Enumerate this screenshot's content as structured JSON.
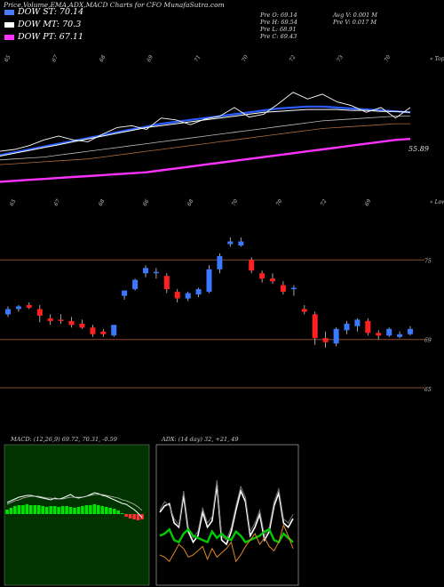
{
  "page": {
    "title": "Price,Volume,EMA,ADX,MACD Charts for CFO MunafaSutra.com"
  },
  "legend": [
    {
      "label": "DOW ST: 70.14",
      "color": "#4a7bff"
    },
    {
      "label": "DOW MT: 70.3",
      "color": "#ffffff"
    },
    {
      "label": "DOW PT: 67.11",
      "color": "#ff33ff"
    }
  ],
  "ohlc": {
    "open": "Pre  O: 69.14",
    "high": "Pre  H: 69.54",
    "low": "Pre  L: 68.91",
    "close": "Pre  C: 69.43",
    "avg_volume": "Avg V: 0.001 M",
    "prev_volume": "Pre  V: 0.017 M"
  },
  "colors": {
    "up": "#3a78ff",
    "down": "#ff2020",
    "ema_short": "#2a5cff",
    "ema_mid": "#ffffff",
    "ema_long": "#ff33ff",
    "macd_panel": "#003300",
    "macd_hist_up": "#00e600",
    "macd_hist_down": "#ff3333",
    "adx_pos": "#00cc00",
    "adx_neg": "#e08a2a",
    "level_line": "#8a4a2a"
  },
  "chart_data": [
    {
      "type": "line",
      "title": "Price with EMA",
      "top_tick_labels": [
        "65",
        "67",
        "68",
        "69",
        "71",
        "70",
        "72",
        "73",
        "70"
      ],
      "bottom_tick_labels": [
        "65",
        "67",
        "68",
        "66",
        "68",
        "70",
        "70",
        "72",
        "69"
      ],
      "corner_labels": [
        "« Tops",
        "« Lows"
      ],
      "last_value_label": "55.89",
      "series": [
        {
          "values": [
            64.4,
            64.7,
            65.0,
            65.3,
            65.6,
            65.9,
            66.2,
            66.5,
            66.8,
            67.1,
            67.4,
            67.7,
            67.9,
            68.1,
            68.3,
            68.5,
            68.7,
            68.9,
            69.1,
            69.3,
            69.4,
            69.5,
            69.5,
            69.4,
            69.3,
            69.2,
            69.1,
            69.0,
            68.9
          ]
        },
        {
          "values": [
            64.3,
            64.6,
            64.9,
            65.2,
            65.5,
            65.8,
            66.1,
            66.4,
            66.7,
            67.0,
            67.3,
            67.5,
            67.7,
            67.9,
            68.1,
            68.3,
            68.5,
            68.7,
            68.9,
            69.0,
            69.1,
            69.2,
            69.2,
            69.2,
            69.1,
            69.1,
            69.0,
            69.0,
            68.9
          ]
        },
        {
          "values": [
            63.9,
            64.0,
            64.1,
            64.2,
            64.4,
            64.6,
            64.8,
            65.0,
            65.2,
            65.4,
            65.6,
            65.8,
            66.0,
            66.2,
            66.4,
            66.6,
            66.8,
            67.0,
            67.2,
            67.4,
            67.6,
            67.8,
            68.0,
            68.1,
            68.2,
            68.3,
            68.4,
            68.5,
            68.5
          ]
        },
        {
          "values": [
            63.4,
            63.5,
            63.6,
            63.7,
            63.8,
            63.9,
            64.0,
            64.2,
            64.4,
            64.6,
            64.8,
            65.0,
            65.2,
            65.4,
            65.6,
            65.8,
            66.0,
            66.2,
            66.4,
            66.6,
            66.8,
            67.0,
            67.2,
            67.3,
            67.4,
            67.5,
            67.6,
            67.7,
            67.7
          ]
        },
        {
          "values": [
            61.6,
            61.7,
            61.8,
            61.9,
            62.0,
            62.1,
            62.2,
            62.3,
            62.4,
            62.5,
            62.6,
            62.8,
            63.0,
            63.2,
            63.4,
            63.6,
            63.8,
            64.0,
            64.2,
            64.4,
            64.6,
            64.8,
            65.0,
            65.2,
            65.4,
            65.6,
            65.8,
            66.0,
            66.1
          ]
        },
        {
          "values": [
            64.8,
            65.0,
            65.4,
            66.0,
            66.4,
            66.0,
            65.8,
            66.6,
            67.3,
            67.5,
            67.1,
            68.3,
            68.1,
            67.6,
            68.2,
            68.5,
            69.4,
            68.4,
            68.7,
            69.8,
            71.0,
            70.3,
            70.8,
            70.0,
            69.6,
            68.9,
            69.4,
            68.3,
            69.4
          ]
        }
      ]
    },
    {
      "type": "bar",
      "title": "Candlesticks",
      "y_tick_labels": [
        "75",
        "69",
        "65"
      ],
      "ylim": [
        64.2,
        76.7
      ],
      "candles": [
        {
          "o": 70.9,
          "h": 71.5,
          "l": 70.7,
          "c": 71.3
        },
        {
          "o": 71.3,
          "h": 71.6,
          "l": 71.1,
          "c": 71.5
        },
        {
          "o": 71.6,
          "h": 71.8,
          "l": 71.3,
          "c": 71.4
        },
        {
          "o": 71.3,
          "h": 71.6,
          "l": 70.3,
          "c": 70.8
        },
        {
          "o": 70.6,
          "h": 70.9,
          "l": 70.1,
          "c": 70.4
        },
        {
          "o": 70.5,
          "h": 70.9,
          "l": 70.2,
          "c": 70.4
        },
        {
          "o": 70.4,
          "h": 70.7,
          "l": 69.9,
          "c": 70.1
        },
        {
          "o": 70.2,
          "h": 70.5,
          "l": 69.8,
          "c": 69.9
        },
        {
          "o": 69.9,
          "h": 70.1,
          "l": 69.2,
          "c": 69.4
        },
        {
          "o": 69.6,
          "h": 69.8,
          "l": 69.2,
          "c": 69.4
        },
        {
          "o": 69.3,
          "h": 70.1,
          "l": 69.2,
          "c": 70.1
        },
        {
          "o": 72.3,
          "h": 72.7,
          "l": 72.0,
          "c": 72.7
        },
        {
          "o": 72.8,
          "h": 73.6,
          "l": 72.7,
          "c": 73.5
        },
        {
          "o": 74.0,
          "h": 74.6,
          "l": 73.7,
          "c": 74.4
        },
        {
          "o": 74.0,
          "h": 74.4,
          "l": 73.6,
          "c": 74.1
        },
        {
          "o": 73.8,
          "h": 74.0,
          "l": 72.5,
          "c": 72.8
        },
        {
          "o": 72.6,
          "h": 72.8,
          "l": 71.8,
          "c": 72.1
        },
        {
          "o": 72.1,
          "h": 72.6,
          "l": 71.9,
          "c": 72.5
        },
        {
          "o": 72.4,
          "h": 72.9,
          "l": 72.2,
          "c": 72.8
        },
        {
          "o": 72.6,
          "h": 74.6,
          "l": 72.5,
          "c": 74.3
        },
        {
          "o": 74.3,
          "h": 75.5,
          "l": 74.0,
          "c": 75.3
        },
        {
          "o": 76.2,
          "h": 76.7,
          "l": 76.0,
          "c": 76.4
        },
        {
          "o": 76.1,
          "h": 76.7,
          "l": 76.0,
          "c": 76.4
        },
        {
          "o": 75.0,
          "h": 75.2,
          "l": 74.0,
          "c": 74.2
        },
        {
          "o": 74.0,
          "h": 74.2,
          "l": 73.3,
          "c": 73.6
        },
        {
          "o": 73.6,
          "h": 74.0,
          "l": 73.2,
          "c": 73.4
        },
        {
          "o": 73.1,
          "h": 73.4,
          "l": 72.4,
          "c": 72.6
        },
        {
          "o": 72.8,
          "h": 73.1,
          "l": 72.3,
          "c": 72.9
        },
        {
          "o": 71.3,
          "h": 71.6,
          "l": 70.9,
          "c": 71.1
        },
        {
          "o": 70.9,
          "h": 71.1,
          "l": 68.6,
          "c": 69.1
        },
        {
          "o": 69.1,
          "h": 69.6,
          "l": 68.4,
          "c": 68.8
        },
        {
          "o": 68.7,
          "h": 69.9,
          "l": 68.5,
          "c": 69.8
        },
        {
          "o": 69.7,
          "h": 70.4,
          "l": 69.4,
          "c": 70.2
        },
        {
          "o": 70.0,
          "h": 70.6,
          "l": 69.6,
          "c": 70.5
        },
        {
          "o": 70.4,
          "h": 70.6,
          "l": 69.3,
          "c": 69.5
        },
        {
          "o": 69.5,
          "h": 69.7,
          "l": 69.0,
          "c": 69.3
        },
        {
          "o": 69.3,
          "h": 69.9,
          "l": 69.2,
          "c": 69.8
        },
        {
          "o": 69.2,
          "h": 69.6,
          "l": 69.1,
          "c": 69.4
        },
        {
          "o": 69.4,
          "h": 70.0,
          "l": 69.3,
          "c": 69.8
        }
      ]
    },
    {
      "type": "bar",
      "title": "MACD: (12,26,9) 69.72, 70.31, -0.59",
      "histogram": [
        0.5,
        0.7,
        0.9,
        1.0,
        1.0,
        1.1,
        1.0,
        1.0,
        1.0,
        0.9,
        0.8,
        0.9,
        0.9,
        0.8,
        0.9,
        0.9,
        0.8,
        0.7,
        0.8,
        0.9,
        1.0,
        1.0,
        1.1,
        1.0,
        0.9,
        0.8,
        0.7,
        0.6,
        0.4,
        0.1,
        -0.3,
        -0.5,
        -0.6,
        -0.7,
        -0.6
      ],
      "series": [
        {
          "values": [
            1.3,
            1.5,
            1.7,
            1.9,
            2.0,
            2.1,
            2.1,
            2.0,
            1.9,
            1.8,
            1.7,
            1.6,
            1.8,
            1.7,
            1.8,
            2.0,
            2.2,
            1.9,
            1.8,
            1.9,
            2.0,
            2.2,
            2.4,
            2.3,
            2.1,
            2.0,
            1.8,
            1.6,
            1.4,
            1.2,
            1.1,
            0.8,
            0.5,
            0.1,
            -0.4
          ]
        },
        {
          "values": [
            1.1,
            1.3,
            1.5,
            1.6,
            1.8,
            1.9,
            2.0,
            2.0,
            2.0,
            1.9,
            1.8,
            1.8,
            1.7,
            1.7,
            1.7,
            1.8,
            1.9,
            1.9,
            1.9,
            1.9,
            2.0,
            2.1,
            2.2,
            2.2,
            2.2,
            2.1,
            2.0,
            1.9,
            1.8,
            1.6,
            1.5,
            1.3,
            1.1,
            0.8,
            0.4
          ]
        }
      ]
    },
    {
      "type": "line",
      "title": "ADX: (14 day) 32, +21, 49",
      "series": [
        {
          "values": [
            35,
            38,
            39,
            30,
            28,
            43,
            26,
            21,
            24,
            35,
            28,
            31,
            48,
            22,
            20,
            26,
            36,
            45,
            40,
            24,
            28,
            34,
            22,
            26,
            38,
            44,
            30,
            28,
            32
          ]
        },
        {
          "values": [
            36,
            40,
            38,
            32,
            29,
            45,
            28,
            23,
            26,
            37,
            30,
            33,
            50,
            24,
            22,
            28,
            38,
            47,
            42,
            26,
            30,
            36,
            24,
            28,
            40,
            46,
            32,
            30,
            34
          ]
        },
        {
          "values": [
            24,
            25,
            27,
            22,
            21,
            25,
            27,
            24,
            23,
            22,
            21,
            26,
            23,
            25,
            23,
            22,
            26,
            24,
            21,
            22,
            23,
            24,
            26,
            27,
            22,
            21,
            25,
            23,
            21
          ]
        },
        {
          "values": [
            15,
            14,
            12,
            16,
            20,
            18,
            14,
            15,
            17,
            19,
            13,
            18,
            14,
            16,
            18,
            21,
            12,
            15,
            19,
            22,
            25,
            20,
            23,
            19,
            17,
            21,
            29,
            24,
            18
          ]
        }
      ]
    }
  ]
}
